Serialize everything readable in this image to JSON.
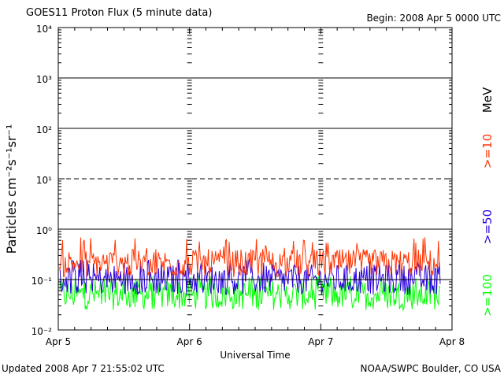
{
  "header": {
    "title": "GOES11 Proton Flux (5 minute data)",
    "begin": "Begin: 2008 Apr 5 0000 UTC"
  },
  "footer": {
    "updated": "Updated 2008 Apr  7 21:55:02 UTC",
    "credit": "NOAA/SWPC Boulder, CO USA"
  },
  "chart_data": {
    "type": "line",
    "title": "GOES11 Proton Flux (5 minute data)",
    "xlabel": "Universal Time",
    "ylabel": "Particles cm⁻²s⁻¹sr⁻¹",
    "yscale": "log",
    "ylim": [
      0.01,
      10000
    ],
    "x_ticks": [
      "Apr 5",
      "Apr 6",
      "Apr 7",
      "Apr 8"
    ],
    "x_range": [
      "2008-04-05 00:00 UTC",
      "2008-04-08 00:00 UTC"
    ],
    "y_ticks": [
      "10⁻²",
      "10⁻¹",
      "10⁰",
      "10¹",
      "10²",
      "10³",
      "10⁴"
    ],
    "reference_lines": [
      {
        "value": 0.1,
        "style": "solid"
      },
      {
        "value": 1,
        "style": "solid"
      },
      {
        "value": 10,
        "style": "dashed"
      },
      {
        "value": 100,
        "style": "solid"
      },
      {
        "value": 1000,
        "style": "solid"
      }
    ],
    "units_label": "MeV",
    "series": [
      {
        "name": ">=10",
        "color": "#ff3300",
        "typical_low": 0.11,
        "typical_high": 0.4,
        "peak": 0.7
      },
      {
        "name": ">=50",
        "color": "#2a00e0",
        "typical_low": 0.05,
        "typical_high": 0.2,
        "peak": 0.25
      },
      {
        "name": ">=100",
        "color": "#00ff00",
        "typical_low": 0.025,
        "typical_high": 0.1,
        "peak": 0.12
      }
    ],
    "data_end": "2008-04-07 21:55 UTC",
    "grid": false
  }
}
